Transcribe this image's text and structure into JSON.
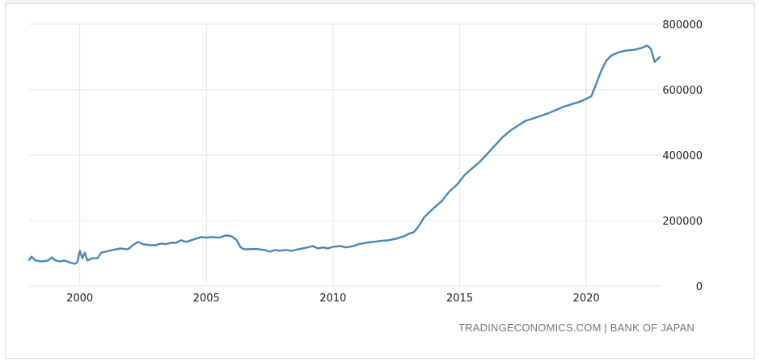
{
  "source_text": "TRADINGECONOMICS.COM | BANK OF JAPAN",
  "colors": {
    "line": "#4a86b8",
    "grid": "#e6e6e6",
    "text": "#222222",
    "source": "#777777"
  },
  "chart_data": {
    "type": "line",
    "title": "",
    "xlabel": "",
    "ylabel": "",
    "y_axis_position": "right",
    "grid": true,
    "xlim": [
      1998.0,
      2022.9
    ],
    "ylim": [
      0,
      800000
    ],
    "x_ticks": [
      "2000",
      "2005",
      "2010",
      "2015",
      "2020"
    ],
    "y_ticks": [
      "0",
      "200000",
      "400000",
      "600000",
      "800000"
    ],
    "series": [
      {
        "values": [
          [
            1998.0,
            80000
          ],
          [
            1998.1,
            90000
          ],
          [
            1998.25,
            78000
          ],
          [
            1998.5,
            75000
          ],
          [
            1998.75,
            78000
          ],
          [
            1998.9,
            88000
          ],
          [
            1999.0,
            80000
          ],
          [
            1999.2,
            75000
          ],
          [
            1999.4,
            78000
          ],
          [
            1999.6,
            72000
          ],
          [
            1999.8,
            68000
          ],
          [
            1999.9,
            72000
          ],
          [
            2000.0,
            108000
          ],
          [
            2000.1,
            85000
          ],
          [
            2000.2,
            102000
          ],
          [
            2000.3,
            78000
          ],
          [
            2000.5,
            85000
          ],
          [
            2000.7,
            85000
          ],
          [
            2000.85,
            102000
          ],
          [
            2001.0,
            105000
          ],
          [
            2001.3,
            110000
          ],
          [
            2001.6,
            115000
          ],
          [
            2001.9,
            112000
          ],
          [
            2002.1,
            125000
          ],
          [
            2002.3,
            135000
          ],
          [
            2002.5,
            128000
          ],
          [
            2002.8,
            125000
          ],
          [
            2003.0,
            125000
          ],
          [
            2003.2,
            130000
          ],
          [
            2003.4,
            128000
          ],
          [
            2003.6,
            132000
          ],
          [
            2003.8,
            132000
          ],
          [
            2004.0,
            140000
          ],
          [
            2004.2,
            135000
          ],
          [
            2004.4,
            140000
          ],
          [
            2004.6,
            145000
          ],
          [
            2004.8,
            150000
          ],
          [
            2005.0,
            148000
          ],
          [
            2005.2,
            150000
          ],
          [
            2005.5,
            148000
          ],
          [
            2005.8,
            155000
          ],
          [
            2006.0,
            152000
          ],
          [
            2006.2,
            140000
          ],
          [
            2006.35,
            118000
          ],
          [
            2006.5,
            112000
          ],
          [
            2006.8,
            113000
          ],
          [
            2007.0,
            113000
          ],
          [
            2007.3,
            110000
          ],
          [
            2007.5,
            105000
          ],
          [
            2007.7,
            110000
          ],
          [
            2007.9,
            108000
          ],
          [
            2008.1,
            110000
          ],
          [
            2008.4,
            108000
          ],
          [
            2008.6,
            112000
          ],
          [
            2008.8,
            115000
          ],
          [
            2009.0,
            118000
          ],
          [
            2009.2,
            122000
          ],
          [
            2009.4,
            115000
          ],
          [
            2009.6,
            118000
          ],
          [
            2009.8,
            115000
          ],
          [
            2010.0,
            120000
          ],
          [
            2010.3,
            122000
          ],
          [
            2010.5,
            118000
          ],
          [
            2010.8,
            122000
          ],
          [
            2011.0,
            128000
          ],
          [
            2011.3,
            132000
          ],
          [
            2011.6,
            135000
          ],
          [
            2011.9,
            138000
          ],
          [
            2012.2,
            140000
          ],
          [
            2012.5,
            145000
          ],
          [
            2012.8,
            152000
          ],
          [
            2013.0,
            160000
          ],
          [
            2013.2,
            165000
          ],
          [
            2013.4,
            185000
          ],
          [
            2013.6,
            210000
          ],
          [
            2013.8,
            225000
          ],
          [
            2014.0,
            240000
          ],
          [
            2014.3,
            260000
          ],
          [
            2014.6,
            290000
          ],
          [
            2014.9,
            310000
          ],
          [
            2015.2,
            340000
          ],
          [
            2015.5,
            360000
          ],
          [
            2015.8,
            380000
          ],
          [
            2016.1,
            405000
          ],
          [
            2016.4,
            430000
          ],
          [
            2016.7,
            455000
          ],
          [
            2017.0,
            475000
          ],
          [
            2017.3,
            490000
          ],
          [
            2017.6,
            505000
          ],
          [
            2017.9,
            512000
          ],
          [
            2018.2,
            520000
          ],
          [
            2018.5,
            528000
          ],
          [
            2018.8,
            538000
          ],
          [
            2019.1,
            548000
          ],
          [
            2019.4,
            555000
          ],
          [
            2019.7,
            562000
          ],
          [
            2020.0,
            572000
          ],
          [
            2020.2,
            580000
          ],
          [
            2020.4,
            620000
          ],
          [
            2020.6,
            660000
          ],
          [
            2020.8,
            690000
          ],
          [
            2021.0,
            705000
          ],
          [
            2021.3,
            715000
          ],
          [
            2021.6,
            720000
          ],
          [
            2021.9,
            722000
          ],
          [
            2022.2,
            728000
          ],
          [
            2022.4,
            735000
          ],
          [
            2022.55,
            725000
          ],
          [
            2022.7,
            685000
          ],
          [
            2022.9,
            700000
          ]
        ]
      }
    ]
  }
}
